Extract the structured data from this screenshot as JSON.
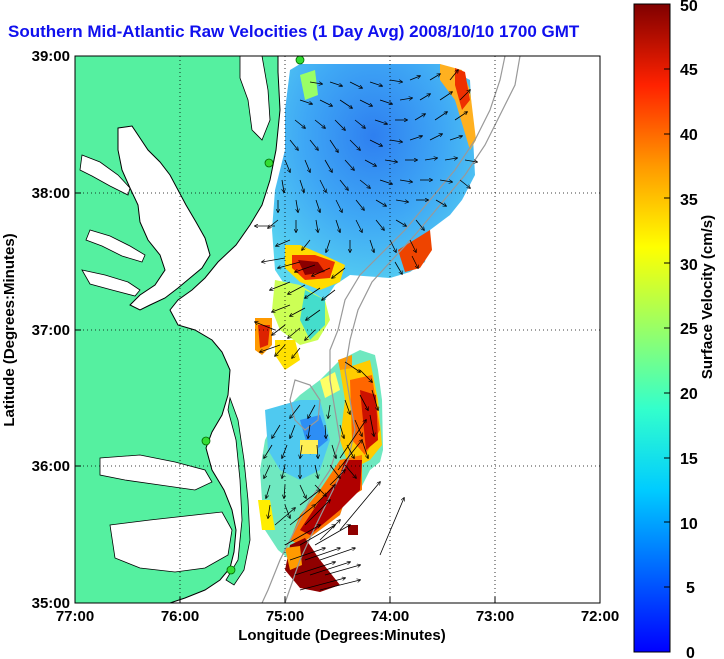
{
  "title": "Southern Mid-Atlantic Raw Velocities (1 Day Avg) 2008/10/10 1700 GMT",
  "x_axis": {
    "label": "Longitude (Degrees:Minutes)",
    "ticks": [
      "77:00",
      "76:00",
      "75:00",
      "74:00",
      "73:00",
      "72:00"
    ]
  },
  "y_axis": {
    "label": "Latitude (Degrees:Minutes)",
    "ticks": [
      "39:00",
      "38:00",
      "37:00",
      "36:00",
      "35:00"
    ]
  },
  "colorbar": {
    "label": "Surface Velocity (cm/s)",
    "ticks": [
      "50",
      "45",
      "40",
      "35",
      "30",
      "25",
      "20",
      "15",
      "10",
      "5",
      "0"
    ],
    "range": [
      0,
      50
    ],
    "colormap": "jet"
  },
  "colors": {
    "land": "#55f0a0",
    "coastline": "#000000",
    "title": "#1010ee",
    "bathymetry": "#999999",
    "station": "#33dd33"
  },
  "map_extent": {
    "lon": [
      -77,
      -72
    ],
    "lat": [
      35,
      39
    ]
  },
  "stations": [
    {
      "lon": -75.13,
      "lat": 38.98
    },
    {
      "lon": -75.18,
      "lat": 38.22
    },
    {
      "lon": -75.75,
      "lat": 36.18
    },
    {
      "lon": -75.5,
      "lat": 35.25
    }
  ]
}
